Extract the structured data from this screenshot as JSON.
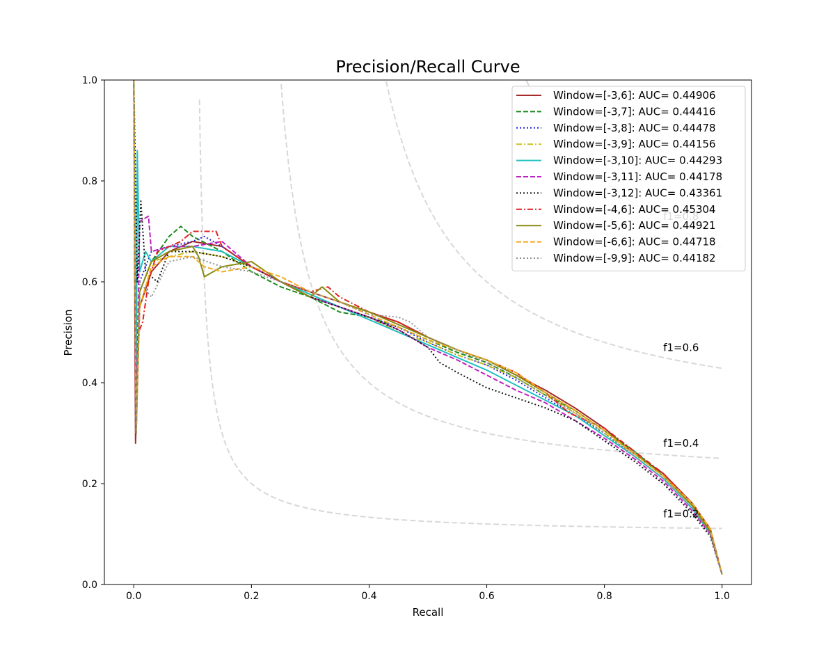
{
  "chart_data": {
    "type": "line",
    "title": "Precision/Recall Curve",
    "xlabel": "Recall",
    "ylabel": "Precision",
    "xlim": [
      -0.05,
      1.05
    ],
    "ylim": [
      0.0,
      1.0
    ],
    "xticks": [
      "0.0",
      "0.2",
      "0.4",
      "0.6",
      "0.8",
      "1.0"
    ],
    "yticks": [
      "0.0",
      "0.2",
      "0.4",
      "0.6",
      "0.8",
      "1.0"
    ],
    "grid": false,
    "legend_position": "top-right",
    "iso_f1": [
      {
        "f1": 0.2,
        "label": "f1=0.2",
        "label_y": 0.14
      },
      {
        "f1": 0.4,
        "label": "f1=0.4",
        "label_y": 0.28
      },
      {
        "f1": 0.6,
        "label": "f1=0.6",
        "label_y": 0.47
      },
      {
        "f1": 0.8,
        "label": "f1=0.8",
        "label_y": 0.73
      }
    ],
    "series": [
      {
        "name": "Window=[-3,6]: AUC= 0.44906",
        "color": "#a52a2a",
        "dash": "solid",
        "points": [
          [
            0.0,
            1.0
          ],
          [
            0.003,
            0.28
          ],
          [
            0.01,
            0.55
          ],
          [
            0.03,
            0.62
          ],
          [
            0.06,
            0.66
          ],
          [
            0.1,
            0.68
          ],
          [
            0.15,
            0.67
          ],
          [
            0.2,
            0.63
          ],
          [
            0.25,
            0.6
          ],
          [
            0.3,
            0.58
          ],
          [
            0.35,
            0.56
          ],
          [
            0.4,
            0.54
          ],
          [
            0.45,
            0.52
          ],
          [
            0.5,
            0.49
          ],
          [
            0.55,
            0.465
          ],
          [
            0.6,
            0.445
          ],
          [
            0.65,
            0.415
          ],
          [
            0.7,
            0.385
          ],
          [
            0.75,
            0.35
          ],
          [
            0.8,
            0.31
          ],
          [
            0.85,
            0.26
          ],
          [
            0.9,
            0.22
          ],
          [
            0.95,
            0.16
          ],
          [
            0.98,
            0.11
          ],
          [
            1.0,
            0.02
          ]
        ]
      },
      {
        "name": "Window=[-3,7]: AUC= 0.44416",
        "color": "#1a8a1a",
        "dash": "dashed",
        "points": [
          [
            0.0,
            1.0
          ],
          [
            0.004,
            0.3
          ],
          [
            0.01,
            0.58
          ],
          [
            0.03,
            0.64
          ],
          [
            0.06,
            0.69
          ],
          [
            0.08,
            0.71
          ],
          [
            0.1,
            0.69
          ],
          [
            0.15,
            0.66
          ],
          [
            0.2,
            0.62
          ],
          [
            0.25,
            0.59
          ],
          [
            0.3,
            0.57
          ],
          [
            0.35,
            0.54
          ],
          [
            0.4,
            0.53
          ],
          [
            0.45,
            0.51
          ],
          [
            0.5,
            0.485
          ],
          [
            0.55,
            0.46
          ],
          [
            0.6,
            0.44
          ],
          [
            0.65,
            0.41
          ],
          [
            0.7,
            0.375
          ],
          [
            0.75,
            0.345
          ],
          [
            0.8,
            0.305
          ],
          [
            0.85,
            0.265
          ],
          [
            0.9,
            0.215
          ],
          [
            0.95,
            0.155
          ],
          [
            0.98,
            0.105
          ],
          [
            1.0,
            0.02
          ]
        ]
      },
      {
        "name": "Window=[-3,8]: AUC= 0.44478",
        "color": "#2222dd",
        "dash": "dotted",
        "points": [
          [
            0.0,
            1.0
          ],
          [
            0.004,
            0.3
          ],
          [
            0.01,
            0.6
          ],
          [
            0.03,
            0.66
          ],
          [
            0.06,
            0.67
          ],
          [
            0.1,
            0.68
          ],
          [
            0.12,
            0.69
          ],
          [
            0.15,
            0.67
          ],
          [
            0.2,
            0.63
          ],
          [
            0.25,
            0.6
          ],
          [
            0.3,
            0.57
          ],
          [
            0.35,
            0.55
          ],
          [
            0.4,
            0.53
          ],
          [
            0.45,
            0.51
          ],
          [
            0.5,
            0.48
          ],
          [
            0.55,
            0.455
          ],
          [
            0.6,
            0.435
          ],
          [
            0.65,
            0.405
          ],
          [
            0.7,
            0.37
          ],
          [
            0.75,
            0.335
          ],
          [
            0.8,
            0.3
          ],
          [
            0.85,
            0.255
          ],
          [
            0.9,
            0.21
          ],
          [
            0.95,
            0.15
          ],
          [
            0.98,
            0.1
          ],
          [
            1.0,
            0.02
          ]
        ]
      },
      {
        "name": "Window=[-3,9]: AUC= 0.44156",
        "color": "#c8c020",
        "dash": "dashdot",
        "points": [
          [
            0.0,
            1.0
          ],
          [
            0.004,
            0.32
          ],
          [
            0.01,
            0.58
          ],
          [
            0.03,
            0.64
          ],
          [
            0.06,
            0.65
          ],
          [
            0.1,
            0.66
          ],
          [
            0.15,
            0.65
          ],
          [
            0.2,
            0.63
          ],
          [
            0.25,
            0.6
          ],
          [
            0.3,
            0.57
          ],
          [
            0.35,
            0.55
          ],
          [
            0.4,
            0.53
          ],
          [
            0.45,
            0.5
          ],
          [
            0.5,
            0.48
          ],
          [
            0.55,
            0.455
          ],
          [
            0.6,
            0.435
          ],
          [
            0.65,
            0.41
          ],
          [
            0.7,
            0.375
          ],
          [
            0.75,
            0.34
          ],
          [
            0.8,
            0.3
          ],
          [
            0.85,
            0.26
          ],
          [
            0.9,
            0.215
          ],
          [
            0.95,
            0.155
          ],
          [
            0.98,
            0.105
          ],
          [
            1.0,
            0.02
          ]
        ]
      },
      {
        "name": "Window=[-3,10]: AUC= 0.44293",
        "color": "#20c0c0",
        "dash": "solid",
        "points": [
          [
            0.0,
            1.0
          ],
          [
            0.004,
            0.35
          ],
          [
            0.006,
            0.86
          ],
          [
            0.01,
            0.62
          ],
          [
            0.02,
            0.66
          ],
          [
            0.03,
            0.64
          ],
          [
            0.06,
            0.67
          ],
          [
            0.1,
            0.67
          ],
          [
            0.15,
            0.66
          ],
          [
            0.2,
            0.63
          ],
          [
            0.25,
            0.6
          ],
          [
            0.3,
            0.575
          ],
          [
            0.35,
            0.55
          ],
          [
            0.4,
            0.525
          ],
          [
            0.45,
            0.5
          ],
          [
            0.5,
            0.475
          ],
          [
            0.55,
            0.45
          ],
          [
            0.6,
            0.425
          ],
          [
            0.65,
            0.395
          ],
          [
            0.7,
            0.365
          ],
          [
            0.75,
            0.335
          ],
          [
            0.8,
            0.295
          ],
          [
            0.85,
            0.255
          ],
          [
            0.9,
            0.21
          ],
          [
            0.95,
            0.15
          ],
          [
            0.98,
            0.1
          ],
          [
            1.0,
            0.02
          ]
        ]
      },
      {
        "name": "Window=[-3,11]: AUC= 0.44178",
        "color": "#c020c0",
        "dash": "dashed",
        "points": [
          [
            0.0,
            1.0
          ],
          [
            0.004,
            0.3
          ],
          [
            0.01,
            0.72
          ],
          [
            0.025,
            0.73
          ],
          [
            0.03,
            0.66
          ],
          [
            0.06,
            0.67
          ],
          [
            0.1,
            0.67
          ],
          [
            0.15,
            0.68
          ],
          [
            0.2,
            0.63
          ],
          [
            0.25,
            0.6
          ],
          [
            0.3,
            0.57
          ],
          [
            0.35,
            0.55
          ],
          [
            0.4,
            0.53
          ],
          [
            0.45,
            0.505
          ],
          [
            0.5,
            0.47
          ],
          [
            0.55,
            0.445
          ],
          [
            0.6,
            0.415
          ],
          [
            0.65,
            0.385
          ],
          [
            0.7,
            0.36
          ],
          [
            0.75,
            0.325
          ],
          [
            0.8,
            0.29
          ],
          [
            0.85,
            0.25
          ],
          [
            0.9,
            0.205
          ],
          [
            0.95,
            0.145
          ],
          [
            0.98,
            0.1
          ],
          [
            1.0,
            0.02
          ]
        ]
      },
      {
        "name": "Window=[-3,12]: AUC= 0.43361",
        "color": "#111111",
        "dash": "dotted",
        "points": [
          [
            0.0,
            1.0
          ],
          [
            0.003,
            0.8
          ],
          [
            0.006,
            0.6
          ],
          [
            0.012,
            0.76
          ],
          [
            0.02,
            0.62
          ],
          [
            0.04,
            0.6
          ],
          [
            0.06,
            0.66
          ],
          [
            0.1,
            0.66
          ],
          [
            0.15,
            0.65
          ],
          [
            0.2,
            0.63
          ],
          [
            0.25,
            0.6
          ],
          [
            0.3,
            0.57
          ],
          [
            0.35,
            0.55
          ],
          [
            0.4,
            0.53
          ],
          [
            0.45,
            0.505
          ],
          [
            0.5,
            0.47
          ],
          [
            0.52,
            0.44
          ],
          [
            0.55,
            0.42
          ],
          [
            0.6,
            0.39
          ],
          [
            0.65,
            0.37
          ],
          [
            0.7,
            0.35
          ],
          [
            0.75,
            0.325
          ],
          [
            0.8,
            0.285
          ],
          [
            0.85,
            0.245
          ],
          [
            0.9,
            0.2
          ],
          [
            0.95,
            0.14
          ],
          [
            0.98,
            0.095
          ],
          [
            1.0,
            0.02
          ]
        ]
      },
      {
        "name": "Window=[-4,6]: AUC= 0.45304",
        "color": "#e02020",
        "dash": "dashdot",
        "points": [
          [
            0.0,
            1.0
          ],
          [
            0.004,
            0.3
          ],
          [
            0.008,
            0.5
          ],
          [
            0.015,
            0.52
          ],
          [
            0.025,
            0.6
          ],
          [
            0.04,
            0.66
          ],
          [
            0.08,
            0.68
          ],
          [
            0.1,
            0.7
          ],
          [
            0.14,
            0.7
          ],
          [
            0.15,
            0.67
          ],
          [
            0.2,
            0.63
          ],
          [
            0.25,
            0.6
          ],
          [
            0.3,
            0.58
          ],
          [
            0.33,
            0.59
          ],
          [
            0.35,
            0.57
          ],
          [
            0.4,
            0.54
          ],
          [
            0.45,
            0.52
          ],
          [
            0.5,
            0.49
          ],
          [
            0.55,
            0.465
          ],
          [
            0.6,
            0.445
          ],
          [
            0.65,
            0.42
          ],
          [
            0.7,
            0.38
          ],
          [
            0.74,
            0.34
          ],
          [
            0.8,
            0.31
          ],
          [
            0.85,
            0.265
          ],
          [
            0.9,
            0.22
          ],
          [
            0.95,
            0.16
          ],
          [
            0.98,
            0.11
          ],
          [
            1.0,
            0.02
          ]
        ]
      },
      {
        "name": "Window=[-5,6]: AUC= 0.44921",
        "color": "#8a8a10",
        "dash": "solid",
        "points": [
          [
            0.0,
            1.0
          ],
          [
            0.004,
            0.3
          ],
          [
            0.01,
            0.58
          ],
          [
            0.03,
            0.64
          ],
          [
            0.06,
            0.66
          ],
          [
            0.1,
            0.67
          ],
          [
            0.11,
            0.65
          ],
          [
            0.12,
            0.61
          ],
          [
            0.15,
            0.63
          ],
          [
            0.2,
            0.64
          ],
          [
            0.25,
            0.6
          ],
          [
            0.3,
            0.57
          ],
          [
            0.32,
            0.59
          ],
          [
            0.35,
            0.56
          ],
          [
            0.4,
            0.54
          ],
          [
            0.45,
            0.515
          ],
          [
            0.5,
            0.49
          ],
          [
            0.55,
            0.465
          ],
          [
            0.6,
            0.445
          ],
          [
            0.65,
            0.415
          ],
          [
            0.7,
            0.38
          ],
          [
            0.75,
            0.345
          ],
          [
            0.8,
            0.305
          ],
          [
            0.85,
            0.26
          ],
          [
            0.9,
            0.215
          ],
          [
            0.95,
            0.155
          ],
          [
            0.98,
            0.105
          ],
          [
            1.0,
            0.02
          ]
        ]
      },
      {
        "name": "Window=[-6,6]: AUC= 0.44718",
        "color": "#f0a820",
        "dash": "dashed",
        "points": [
          [
            0.0,
            1.0
          ],
          [
            0.004,
            0.3
          ],
          [
            0.01,
            0.55
          ],
          [
            0.03,
            0.63
          ],
          [
            0.06,
            0.65
          ],
          [
            0.1,
            0.65
          ],
          [
            0.12,
            0.63
          ],
          [
            0.15,
            0.62
          ],
          [
            0.2,
            0.63
          ],
          [
            0.25,
            0.61
          ],
          [
            0.3,
            0.58
          ],
          [
            0.35,
            0.56
          ],
          [
            0.4,
            0.535
          ],
          [
            0.45,
            0.51
          ],
          [
            0.5,
            0.485
          ],
          [
            0.55,
            0.465
          ],
          [
            0.6,
            0.445
          ],
          [
            0.65,
            0.42
          ],
          [
            0.7,
            0.38
          ],
          [
            0.75,
            0.345
          ],
          [
            0.8,
            0.305
          ],
          [
            0.85,
            0.26
          ],
          [
            0.9,
            0.215
          ],
          [
            0.95,
            0.16
          ],
          [
            0.98,
            0.11
          ],
          [
            1.0,
            0.02
          ]
        ]
      },
      {
        "name": "Window=[-9,9]: AUC= 0.44182",
        "color": "#909090",
        "dash": "dotted",
        "points": [
          [
            0.0,
            1.0
          ],
          [
            0.004,
            0.3
          ],
          [
            0.01,
            0.6
          ],
          [
            0.03,
            0.57
          ],
          [
            0.06,
            0.64
          ],
          [
            0.1,
            0.65
          ],
          [
            0.15,
            0.63
          ],
          [
            0.2,
            0.62
          ],
          [
            0.25,
            0.6
          ],
          [
            0.3,
            0.58
          ],
          [
            0.35,
            0.56
          ],
          [
            0.4,
            0.535
          ],
          [
            0.45,
            0.53
          ],
          [
            0.47,
            0.52
          ],
          [
            0.5,
            0.49
          ],
          [
            0.55,
            0.465
          ],
          [
            0.6,
            0.44
          ],
          [
            0.65,
            0.41
          ],
          [
            0.7,
            0.375
          ],
          [
            0.75,
            0.34
          ],
          [
            0.8,
            0.3
          ],
          [
            0.85,
            0.255
          ],
          [
            0.9,
            0.21
          ],
          [
            0.95,
            0.15
          ],
          [
            0.98,
            0.1
          ],
          [
            1.0,
            0.02
          ]
        ]
      }
    ]
  }
}
